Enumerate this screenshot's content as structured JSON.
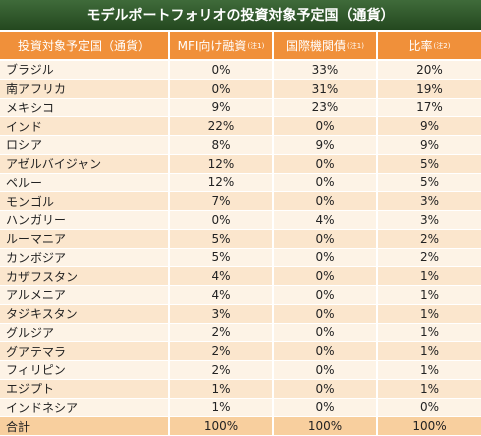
{
  "title": "モデルポートフォリオの投資対象予定国（通貨）",
  "table": {
    "header": [
      {
        "text": "投資対象予定国（通貨）"
      },
      {
        "text": "MFI向け融資",
        "note": "(注1)"
      },
      {
        "text": "国際機関債",
        "note": "(注1)"
      },
      {
        "text": "比率",
        "note": "(注2)"
      }
    ],
    "rows": [
      [
        "ブラジル",
        "0%",
        "33%",
        "20%"
      ],
      [
        "南アフリカ",
        "0%",
        "31%",
        "19%"
      ],
      [
        "メキシコ",
        "9%",
        "23%",
        "17%"
      ],
      [
        "インド",
        "22%",
        "0%",
        "9%"
      ],
      [
        "ロシア",
        "8%",
        "9%",
        "9%"
      ],
      [
        "アゼルバイジャン",
        "12%",
        "0%",
        "5%"
      ],
      [
        "ペルー",
        "12%",
        "0%",
        "5%"
      ],
      [
        "モンゴル",
        "7%",
        "0%",
        "3%"
      ],
      [
        "ハンガリー",
        "0%",
        "4%",
        "3%"
      ],
      [
        "ルーマニア",
        "5%",
        "0%",
        "2%"
      ],
      [
        "カンボジア",
        "5%",
        "0%",
        "2%"
      ],
      [
        "カザフスタン",
        "4%",
        "0%",
        "1%"
      ],
      [
        "アルメニア",
        "4%",
        "0%",
        "1%"
      ],
      [
        "タジキスタン",
        "3%",
        "0%",
        "1%"
      ],
      [
        "グルジア",
        "2%",
        "0%",
        "1%"
      ],
      [
        "グアテマラ",
        "2%",
        "0%",
        "1%"
      ],
      [
        "フィリピン",
        "2%",
        "0%",
        "1%"
      ],
      [
        "エジプト",
        "1%",
        "0%",
        "1%"
      ],
      [
        "インドネシア",
        "1%",
        "0%",
        "0%"
      ]
    ],
    "total": [
      "合計",
      "100%",
      "100%",
      "100%"
    ]
  }
}
